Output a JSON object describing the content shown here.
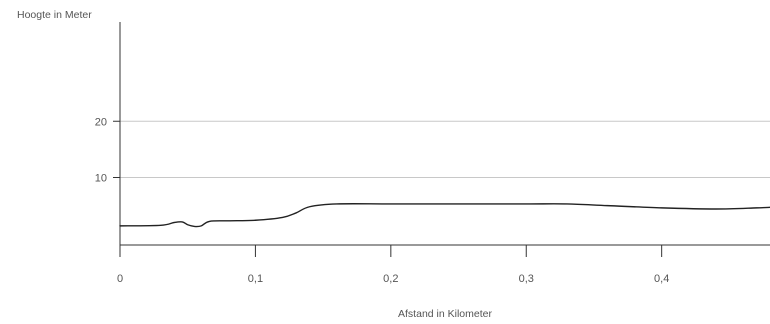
{
  "chart_data": {
    "type": "line",
    "title": "",
    "ylabel": "Hoogte in Meter",
    "xlabel": "Afstand in Kilometer",
    "xlim": [
      0,
      0.48
    ],
    "ylim": [
      -2,
      38
    ],
    "grid": true,
    "x_ticks": [
      {
        "value": 0,
        "label": "0"
      },
      {
        "value": 0.1,
        "label": "0,1"
      },
      {
        "value": 0.2,
        "label": "0,2"
      },
      {
        "value": 0.3,
        "label": "0,3"
      },
      {
        "value": 0.4,
        "label": "0,4"
      }
    ],
    "y_ticks": [
      {
        "value": 10,
        "label": "10"
      },
      {
        "value": 20,
        "label": "20"
      }
    ],
    "colors": {
      "line": "#222222",
      "axis": "#333333",
      "grid": "#c8c8c8"
    },
    "series": [
      {
        "x": [
          0,
          0.03,
          0.04,
          0.046,
          0.05,
          0.055,
          0.06,
          0.066,
          0.08,
          0.1,
          0.12,
          0.13,
          0.14,
          0.16,
          0.2,
          0.25,
          0.3,
          0.33,
          0.36,
          0.4,
          0.44,
          0.47,
          0.48
        ],
        "y": [
          1.4,
          1.5,
          2.0,
          2.1,
          1.6,
          1.3,
          1.4,
          2.2,
          2.3,
          2.4,
          2.9,
          3.7,
          4.8,
          5.3,
          5.3,
          5.3,
          5.3,
          5.3,
          5.0,
          4.6,
          4.4,
          4.6,
          4.7
        ]
      }
    ]
  }
}
